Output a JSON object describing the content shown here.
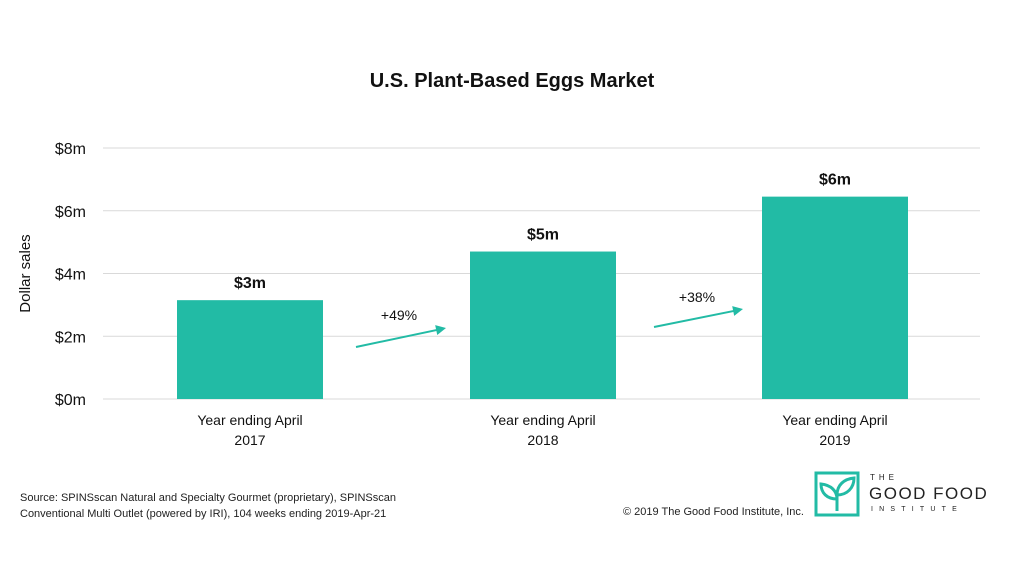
{
  "title": "U.S. Plant-Based Eggs Market",
  "chart_data": {
    "type": "bar",
    "title": "U.S. Plant-Based Eggs Market",
    "ylabel": "Dollar sales",
    "xlabel": "",
    "ylim": [
      0,
      8
    ],
    "ytick_values": [
      0,
      2,
      4,
      6,
      8
    ],
    "ytick_labels": [
      "$0m",
      "$2m",
      "$4m",
      "$6m",
      "$8m"
    ],
    "categories": [
      [
        "Year ending April",
        "2017"
      ],
      [
        "Year ending April",
        "2018"
      ],
      [
        "Year ending April",
        "2019"
      ]
    ],
    "values": [
      3.15,
      4.7,
      6.45
    ],
    "data_labels": [
      "$3m",
      "$5m",
      "$6m"
    ],
    "growth_annotations": [
      {
        "label": "+49%",
        "from": 0,
        "to": 1
      },
      {
        "label": "+38%",
        "from": 1,
        "to": 2
      }
    ],
    "grid": true,
    "legend": "none",
    "bar_color": "#22bba5",
    "arrow_color": "#22bba5",
    "grid_color": "#d9d9d9"
  },
  "source": {
    "line1": "Source: SPINSscan Natural and Specialty Gourmet (proprietary), SPINSscan",
    "line2": "Conventional Multi Outlet (powered by IRI), 104 weeks ending 2019-Apr-21"
  },
  "copyright": "© 2019 The Good Food Institute, Inc.",
  "logo": {
    "icon": "leaf-logo-icon",
    "the": "THE",
    "name": "GOOD FOOD",
    "sub": "INSTITUTE",
    "color": "#22bba5"
  }
}
